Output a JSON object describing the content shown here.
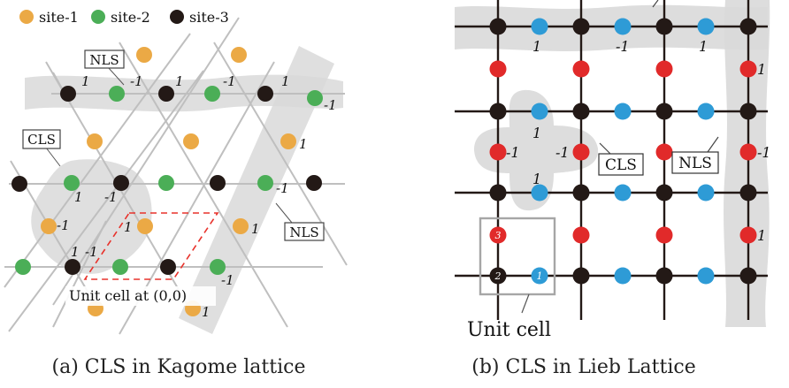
{
  "legend": {
    "items": [
      {
        "label": "site-1",
        "color": "#EBA945"
      },
      {
        "label": "site-2",
        "color": "#4BAE57"
      },
      {
        "label": "site-3",
        "color": "#231916"
      }
    ]
  },
  "kagome": {
    "caption": "(a) CLS in Kagome lattice",
    "cls_box": "CLS",
    "nls_box_top": "NLS",
    "nls_box_right": "NLS",
    "unit_cell_label": "Unit cell at (0,0)",
    "amplitude_labels": [
      {
        "id": "top-1",
        "text": "1"
      },
      {
        "id": "top-2",
        "text": "-1"
      },
      {
        "id": "top-3",
        "text": "1"
      },
      {
        "id": "top-4",
        "text": "-1"
      },
      {
        "id": "top-5",
        "text": "1"
      },
      {
        "id": "top-6",
        "text": "-1"
      },
      {
        "id": "cls-1",
        "text": "1"
      },
      {
        "id": "cls-2",
        "text": "-1"
      },
      {
        "id": "cls-3",
        "text": "-1"
      },
      {
        "id": "cls-4",
        "text": "1"
      },
      {
        "id": "cls-5",
        "text": "1"
      },
      {
        "id": "cls-6",
        "text": "-1"
      },
      {
        "id": "diag-1",
        "text": "1"
      },
      {
        "id": "diag-2",
        "text": "-1"
      },
      {
        "id": "diag-3",
        "text": "1"
      },
      {
        "id": "diag-4",
        "text": "-1"
      },
      {
        "id": "diag-5",
        "text": "1"
      }
    ],
    "colors": {
      "site1": "#EBA945",
      "site2": "#4BAE57",
      "site3": "#231916",
      "bond": "#BFBFBF",
      "highlight": "#D9D9D9",
      "unit_cell": "#E8322B"
    }
  },
  "lieb": {
    "caption": "(b) CLS in Lieb Lattice",
    "cls_box": "CLS",
    "nls_box": "NLS",
    "unit_cell_label": "Unit cell",
    "site_numbers": [
      "1",
      "2",
      "3"
    ],
    "amplitude_labels": [
      {
        "id": "top-1",
        "text": "1"
      },
      {
        "id": "top-2",
        "text": "-1"
      },
      {
        "id": "top-3",
        "text": "1"
      },
      {
        "id": "cls-1",
        "text": "1"
      },
      {
        "id": "cls-2",
        "text": "-1"
      },
      {
        "id": "cls-3",
        "text": "-1"
      },
      {
        "id": "cls-4",
        "text": "1"
      },
      {
        "id": "right-1",
        "text": "1"
      },
      {
        "id": "right-2",
        "text": "-1"
      },
      {
        "id": "right-3",
        "text": "1"
      }
    ],
    "colors": {
      "blue": "#2E9BD6",
      "red": "#E12A2A",
      "black": "#231916",
      "bond": "#231916",
      "highlight": "#D9D9D9",
      "box": "#A6A6A6"
    }
  }
}
